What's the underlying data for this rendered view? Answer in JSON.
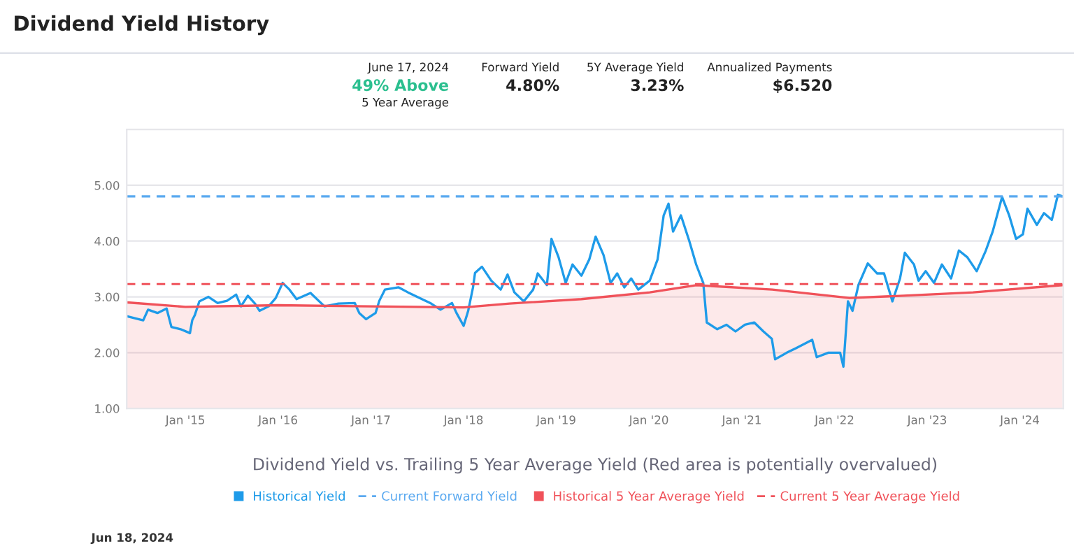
{
  "chart_data": {
    "type": "line",
    "title": "Dividend Yield History",
    "xlabel": "Dividend Yield vs. Trailing 5 Year Average Yield (Red area is potentially overvalued)",
    "annotations": [
      "June 17, 2024",
      "49% Above",
      "5 Year Average",
      "Forward Yield",
      "4.80%",
      "5Y Average Yield",
      "3.23%",
      "Annualized Payments",
      "$6.520",
      "Jun 18, 2024"
    ],
    "series": [
      {
        "name": "Historical Yield",
        "color": "#1e9be9",
        "x": [
          "2014-05-17",
          "2014-07-19",
          "2014-08-07",
          "2014-09-13",
          "2014-10-19",
          "2014-11-07",
          "2014-12-13",
          "2015-01-19",
          "2015-01-28",
          "2015-02-07",
          "2015-02-25",
          "2015-04-02",
          "2015-05-08",
          "2015-06-14",
          "2015-07-20",
          "2015-08-08",
          "2015-09-04",
          "2015-10-02",
          "2015-10-20",
          "2015-11-25",
          "2015-12-23",
          "2016-01-19",
          "2016-02-15",
          "2016-03-14",
          "2016-05-08",
          "2016-07-02",
          "2016-08-26",
          "2016-10-29",
          "2016-11-16",
          "2016-12-13",
          "2017-01-19",
          "2017-02-03",
          "2017-02-25",
          "2017-04-20",
          "2017-05-27",
          "2017-07-02",
          "2017-08-26",
          "2017-10-02",
          "2017-11-16",
          "2017-12-04",
          "2018-01-01",
          "2018-01-19",
          "2018-02-07",
          "2018-02-15",
          "2018-03-14",
          "2018-04-20",
          "2018-05-27",
          "2018-06-23",
          "2018-07-20",
          "2018-08-26",
          "2018-10-02",
          "2018-10-20",
          "2018-11-25",
          "2018-12-13",
          "2019-01-10",
          "2019-02-07",
          "2019-03-06",
          "2019-04-10",
          "2019-05-11",
          "2019-06-05",
          "2019-07-06",
          "2019-08-03",
          "2019-08-29",
          "2019-09-26",
          "2019-10-23",
          "2019-11-20",
          "2020-01-04",
          "2020-02-04",
          "2020-02-28",
          "2020-03-18",
          "2020-04-05",
          "2020-05-06",
          "2020-06-08",
          "2020-07-05",
          "2020-08-02",
          "2020-08-16",
          "2020-09-26",
          "2020-11-01",
          "2020-12-07",
          "2021-01-13",
          "2021-02-19",
          "2021-03-27",
          "2021-04-29",
          "2021-05-12",
          "2021-06-27",
          "2021-08-02",
          "2021-10-05",
          "2021-10-23",
          "2021-12-08",
          "2022-01-23",
          "2022-02-05",
          "2022-02-23",
          "2022-03-13",
          "2022-04-05",
          "2022-05-12",
          "2022-06-18",
          "2022-07-15",
          "2022-08-17",
          "2022-09-16",
          "2022-10-05",
          "2022-11-10",
          "2022-11-28",
          "2022-12-26",
          "2023-01-28",
          "2023-02-28",
          "2023-04-05",
          "2023-05-06",
          "2023-06-08",
          "2023-07-15",
          "2023-08-20",
          "2023-09-16",
          "2023-10-23",
          "2023-11-20",
          "2023-12-17",
          "2024-01-13",
          "2024-01-31",
          "2024-03-08",
          "2024-04-05",
          "2024-05-06",
          "2024-05-30",
          "2024-06-17"
        ],
        "values": [
          2.65,
          2.58,
          2.77,
          2.71,
          2.79,
          2.46,
          2.42,
          2.35,
          2.58,
          2.67,
          2.92,
          3.0,
          2.89,
          2.93,
          3.04,
          2.83,
          3.02,
          2.88,
          2.75,
          2.83,
          2.98,
          3.25,
          3.13,
          2.96,
          3.07,
          2.83,
          2.88,
          2.89,
          2.71,
          2.6,
          2.71,
          2.93,
          3.13,
          3.17,
          3.08,
          3.0,
          2.88,
          2.77,
          2.89,
          2.71,
          2.48,
          2.75,
          3.17,
          3.43,
          3.54,
          3.29,
          3.13,
          3.4,
          3.08,
          2.92,
          3.13,
          3.42,
          3.21,
          4.04,
          3.71,
          3.25,
          3.58,
          3.38,
          3.67,
          4.08,
          3.75,
          3.25,
          3.42,
          3.17,
          3.33,
          3.13,
          3.29,
          3.67,
          4.46,
          4.67,
          4.17,
          4.46,
          4.0,
          3.58,
          3.25,
          2.54,
          2.42,
          2.5,
          2.38,
          2.5,
          2.54,
          2.38,
          2.25,
          1.88,
          2.0,
          2.08,
          2.23,
          1.92,
          2.0,
          2.0,
          1.75,
          2.92,
          2.75,
          3.21,
          3.6,
          3.42,
          3.42,
          2.92,
          3.33,
          3.79,
          3.58,
          3.29,
          3.46,
          3.25,
          3.58,
          3.33,
          3.83,
          3.71,
          3.46,
          3.83,
          4.17,
          4.79,
          4.46,
          4.04,
          4.12,
          4.58,
          4.29,
          4.5,
          4.38,
          4.83,
          4.8
        ]
      },
      {
        "name": "Historical 5 Year Average Yield",
        "type": "area",
        "color": "#f0525a",
        "x": [
          "2014-05-17",
          "2015-01-01",
          "2016-01-01",
          "2018-01-01",
          "2018-07-01",
          "2019-04-10",
          "2020-01-04",
          "2020-07-05",
          "2021-05-01",
          "2022-03-01",
          "2022-10-01",
          "2023-07-01",
          "2024-06-17"
        ],
        "values": [
          2.9,
          2.82,
          2.85,
          2.81,
          2.88,
          2.96,
          3.08,
          3.21,
          3.13,
          2.98,
          3.02,
          3.08,
          3.21
        ]
      }
    ],
    "ref_lines": [
      {
        "axis": "y",
        "value": 4.8,
        "label": "Current Forward Yield",
        "color": "#5aa9f0",
        "line_style": "dashed"
      },
      {
        "axis": "y",
        "value": 3.23,
        "label": "Current 5 Year Average Yield",
        "color": "#f0525a",
        "line_style": "dashed"
      }
    ],
    "xlim": [
      "2014-05-15",
      "2024-06-20"
    ],
    "xticks": [
      {
        "value": "2015-01-01",
        "label": "Jan '15"
      },
      {
        "value": "2016-01-01",
        "label": "Jan '16"
      },
      {
        "value": "2017-01-01",
        "label": "Jan '17"
      },
      {
        "value": "2018-01-01",
        "label": "Jan '18"
      },
      {
        "value": "2019-01-01",
        "label": "Jan '19"
      },
      {
        "value": "2020-01-01",
        "label": "Jan '20"
      },
      {
        "value": "2021-01-01",
        "label": "Jan '21"
      },
      {
        "value": "2022-01-01",
        "label": "Jan '22"
      },
      {
        "value": "2023-01-01",
        "label": "Jan '23"
      },
      {
        "value": "2024-01-01",
        "label": "Jan '24"
      }
    ],
    "ylim": [
      1,
      6
    ],
    "yticks": [
      {
        "value": 1,
        "label": "1.00"
      },
      {
        "value": 2,
        "label": "2.00"
      },
      {
        "value": 3,
        "label": "3.00"
      },
      {
        "value": 4,
        "label": "4.00"
      },
      {
        "value": 5,
        "label": "5.00"
      }
    ],
    "grid": "y",
    "legend": "bottom",
    "marker": "none",
    "line_style": "solid"
  }
}
